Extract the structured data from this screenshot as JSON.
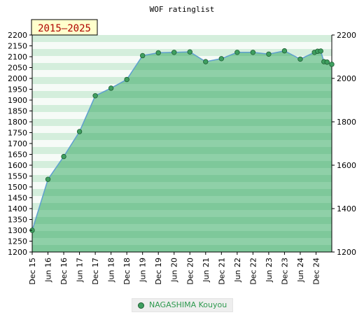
{
  "chart_data": {
    "type": "area",
    "title": "WOF ratinglist",
    "badge": "2015–2025",
    "ylim": [
      1200,
      2200
    ],
    "yticks_left": [
      1200,
      1250,
      1300,
      1350,
      1400,
      1450,
      1500,
      1550,
      1600,
      1650,
      1700,
      1750,
      1800,
      1850,
      1900,
      1950,
      2000,
      2050,
      2100,
      2150,
      2200
    ],
    "yticks_right": [
      1200,
      1400,
      1600,
      1800,
      2000,
      2200
    ],
    "xticks": [
      "Dec 15",
      "Jun 16",
      "Dec 16",
      "Jun 17",
      "Dec 17",
      "Jun 18",
      "Dec 18",
      "Jun 19",
      "Dec 19",
      "Jun 20",
      "Dec 20",
      "Jun 21",
      "Dec 21",
      "Jun 22",
      "Dec 22",
      "Jun 23",
      "Dec 23",
      "Jun 24",
      "Dec 24"
    ],
    "series": [
      {
        "name": "NAGASHIMA Kouyou",
        "x": [
          0,
          1,
          2,
          3,
          4,
          5,
          6,
          7,
          8,
          9,
          10,
          11,
          12,
          13,
          14,
          15,
          16,
          17,
          17.9,
          18.1,
          18.3,
          18.5,
          18.7,
          19
        ],
        "values": [
          1300,
          1535,
          1640,
          1755,
          1920,
          1955,
          1995,
          2105,
          2118,
          2120,
          2122,
          2077,
          2091,
          2120,
          2120,
          2112,
          2127,
          2089,
          2120,
          2125,
          2126,
          2077,
          2075,
          2065
        ]
      }
    ],
    "legend_position": "bottom-center",
    "colors": {
      "line": "#5f9fcf",
      "marker_fill": "#3f9f60",
      "marker_stroke": "#1f5f33",
      "fill_dark": "#7ec89a",
      "fill_light": "#c2e5cd",
      "band_dark": "#d4eedc",
      "band_light": "#f6fbf7"
    }
  }
}
